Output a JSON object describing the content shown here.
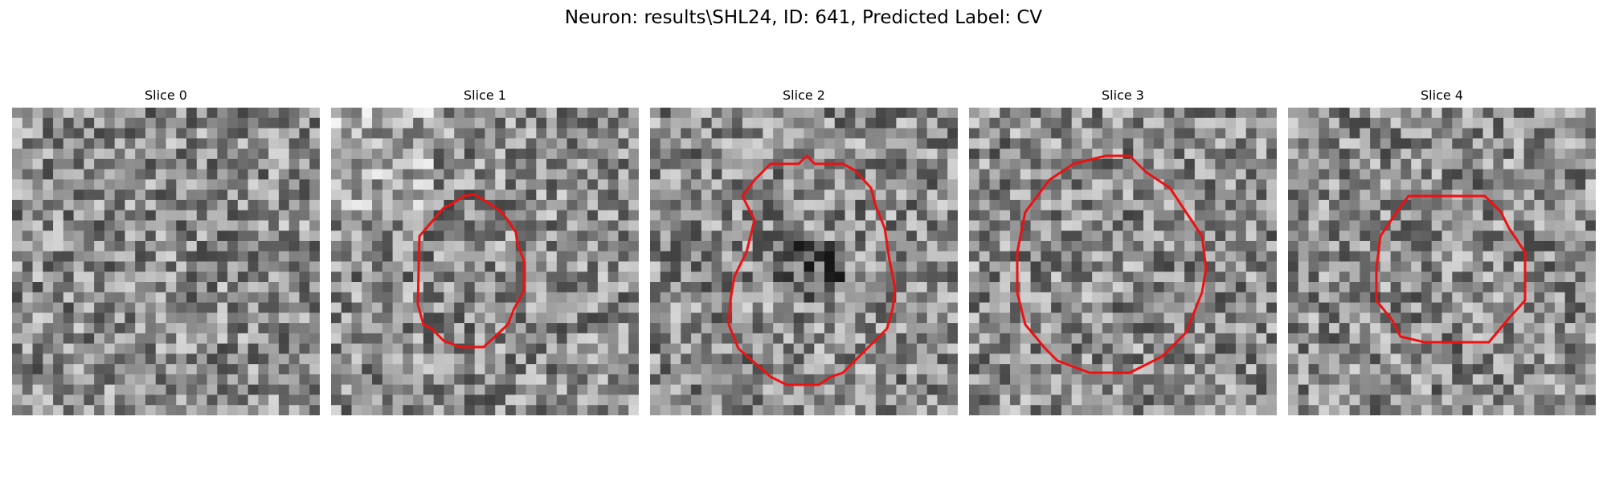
{
  "figure": {
    "title": "Neuron: results\\SHL24, ID: 641, Predicted Label: CV",
    "colormap": "grayscale",
    "contour_color": "#ee1111"
  },
  "panels": [
    {
      "title": "Slice 0",
      "has_contour": false
    },
    {
      "title": "Slice 1",
      "has_contour": true
    },
    {
      "title": "Slice 2",
      "has_contour": true
    },
    {
      "title": "Slice 3",
      "has_contour": true
    },
    {
      "title": "Slice 4",
      "has_contour": true
    }
  ]
}
